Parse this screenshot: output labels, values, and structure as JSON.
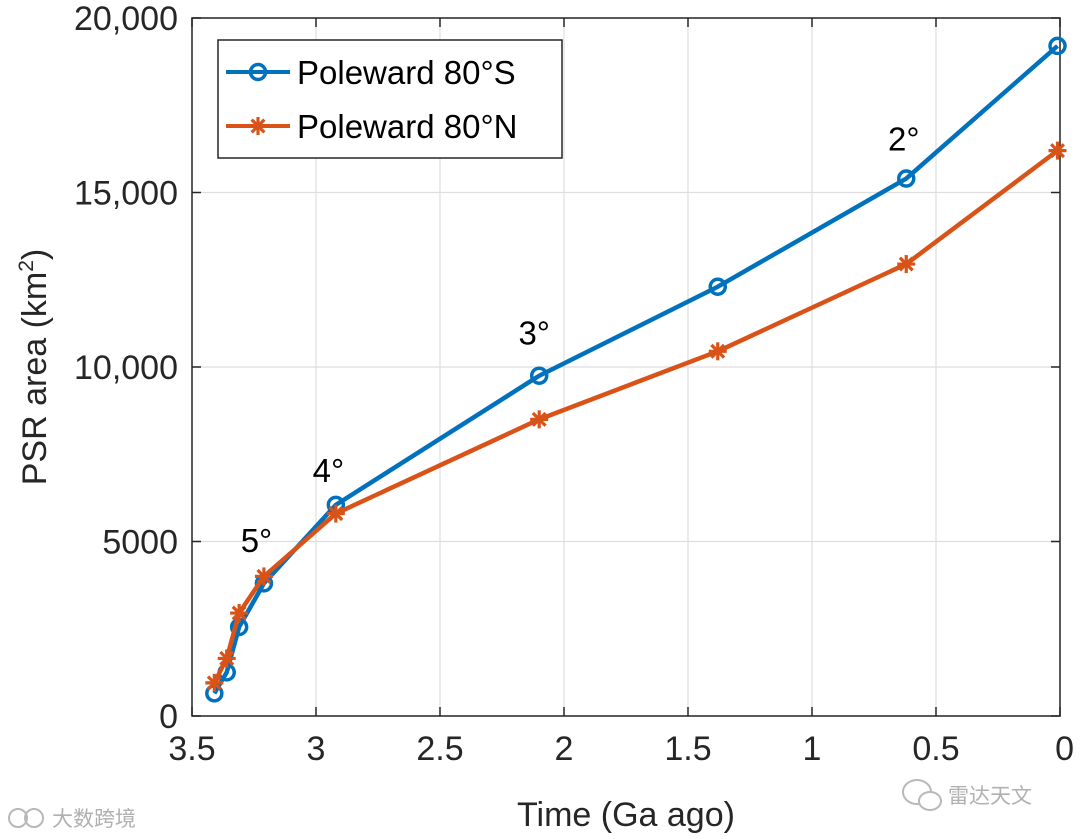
{
  "chart_data": {
    "type": "line",
    "title": "",
    "xlabel": "Time (Ga ago)",
    "ylabel_main": "PSR area (km",
    "ylabel_sup": "2",
    "ylabel_tail": ")",
    "xlim": [
      3.5,
      0
    ],
    "ylim": [
      0,
      20000
    ],
    "x_reversed": true,
    "grid": true,
    "x_ticks": [
      3.5,
      3,
      2.5,
      2,
      1.5,
      1,
      0.5,
      0
    ],
    "x_tick_labels": [
      "3.5",
      "3",
      "2.5",
      "2",
      "1.5",
      "1",
      "0.5",
      "0"
    ],
    "y_ticks": [
      0,
      5000,
      10000,
      15000,
      20000
    ],
    "y_tick_labels": [
      "0",
      "5000",
      "10,000",
      "15,000",
      "20,000"
    ],
    "legend_position": "top-left",
    "series": [
      {
        "name": "Poleward 80°S",
        "color": "#0072BD",
        "marker": "circle",
        "x": [
          3.41,
          3.36,
          3.31,
          3.21,
          2.92,
          2.1,
          1.38,
          0.62,
          0.01
        ],
        "y": [
          650,
          1250,
          2550,
          3800,
          6050,
          9750,
          12300,
          15400,
          19200
        ]
      },
      {
        "name": "Poleward 80°N",
        "color": "#D95319",
        "marker": "asterisk",
        "x": [
          3.41,
          3.36,
          3.31,
          3.21,
          2.92,
          2.1,
          1.38,
          0.62,
          0.01
        ],
        "y": [
          950,
          1650,
          2950,
          4000,
          5800,
          8500,
          10450,
          12950,
          16200
        ]
      }
    ],
    "annotations": [
      {
        "text": "5°",
        "x": 3.24,
        "y": 4700
      },
      {
        "text": "4°",
        "x": 2.95,
        "y": 6700
      },
      {
        "text": "3°",
        "x": 2.12,
        "y": 10650
      },
      {
        "text": "2°",
        "x": 0.63,
        "y": 16200
      }
    ]
  },
  "watermarks": {
    "left": "大数跨境",
    "right": "雷达天文"
  }
}
